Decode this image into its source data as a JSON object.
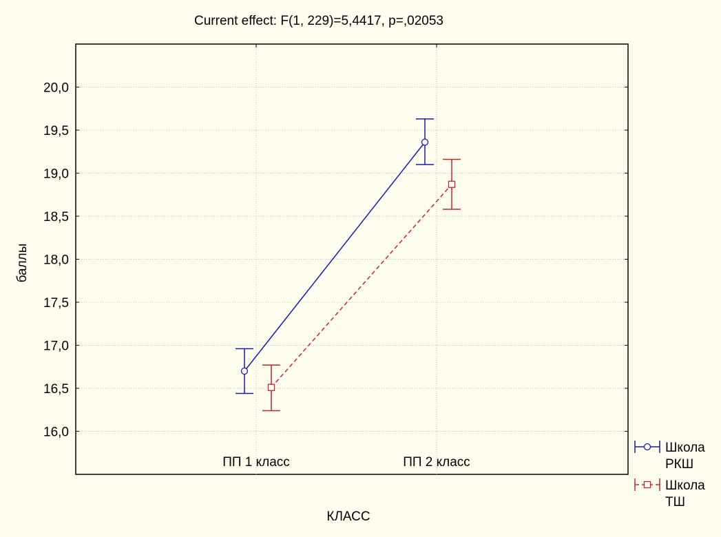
{
  "chart_data": {
    "type": "line",
    "title": "Current effect: F(1, 229)=5,4417, p=,02053",
    "xlabel": "КЛАСС",
    "ylabel": "баллы",
    "categories": [
      "ПП 1 класс",
      "ПП 2 класс"
    ],
    "ylim": [
      15.5,
      20.5
    ],
    "yticks": [
      "16,0",
      "16,5",
      "17,0",
      "17,5",
      "18,0",
      "18,5",
      "19,0",
      "19,5",
      "20,0"
    ],
    "grid": true,
    "legend_position": "bottom-right",
    "series": [
      {
        "name": "Школа РКШ",
        "legend_lines": [
          "Школа",
          "РКШ"
        ],
        "color": "#1a1aaa",
        "marker": "circle",
        "dash": "solid",
        "values": [
          16.7,
          19.36
        ],
        "lower": [
          16.44,
          19.1
        ],
        "upper": [
          16.96,
          19.63
        ]
      },
      {
        "name": "Школа ТШ",
        "legend_lines": [
          "Школа",
          "ТШ"
        ],
        "color": "#cc2222",
        "marker": "square",
        "dash": "dashed",
        "values": [
          16.51,
          18.87
        ],
        "lower": [
          16.24,
          18.58
        ],
        "upper": [
          16.77,
          19.16
        ]
      }
    ]
  }
}
